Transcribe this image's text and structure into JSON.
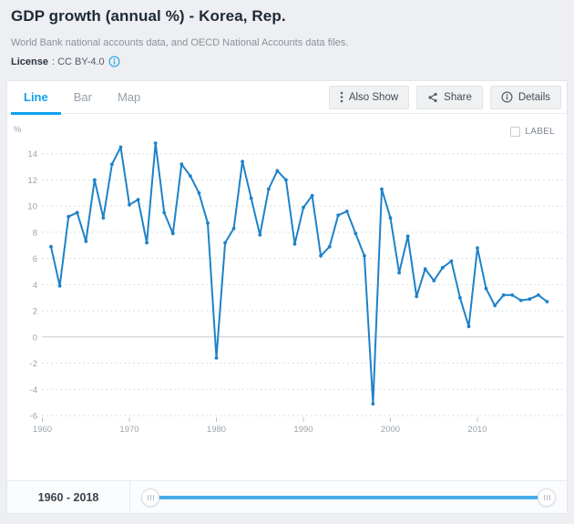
{
  "header": {
    "title": "GDP growth (annual %) - Korea, Rep.",
    "source": "World Bank national accounts data, and OECD National Accounts data files.",
    "license_label": "License",
    "license_value": ": CC BY-4.0"
  },
  "tabs": [
    {
      "label": "Line",
      "active": true
    },
    {
      "label": "Bar",
      "active": false
    },
    {
      "label": "Map",
      "active": false
    }
  ],
  "toolbar": {
    "also_show_label": "Also Show",
    "share_label": "Share",
    "details_label": "Details"
  },
  "chart_controls": {
    "label_checkbox": "LABEL",
    "label_checked": false,
    "unit": "%"
  },
  "footer": {
    "range": "1960 - 2018"
  },
  "colors": {
    "accent_blue": "#10a1ee",
    "line_blue": "#1e82c8",
    "slider_blue": "#47aee9",
    "grid_dashed": "#dadde0",
    "grid_zero": "#c9ccd0",
    "axis_text": "#9aa3ab",
    "page_bg": "#edeff2",
    "card_bg": "#ffffff"
  },
  "chart_data": {
    "type": "line",
    "title": "GDP growth (annual %) - Korea, Rep.",
    "xlabel": "",
    "ylabel": "%",
    "x": [
      1961,
      1962,
      1963,
      1964,
      1965,
      1966,
      1967,
      1968,
      1969,
      1970,
      1971,
      1972,
      1973,
      1974,
      1975,
      1976,
      1977,
      1978,
      1979,
      1980,
      1981,
      1982,
      1983,
      1984,
      1985,
      1986,
      1987,
      1988,
      1989,
      1990,
      1991,
      1992,
      1993,
      1994,
      1995,
      1996,
      1997,
      1998,
      1999,
      2000,
      2001,
      2002,
      2003,
      2004,
      2005,
      2006,
      2007,
      2008,
      2009,
      2010,
      2011,
      2012,
      2013,
      2014,
      2015,
      2016,
      2017,
      2018
    ],
    "values": [
      6.9,
      3.9,
      9.2,
      9.5,
      7.3,
      12.0,
      9.1,
      13.2,
      14.5,
      10.1,
      10.5,
      7.2,
      14.8,
      9.5,
      7.9,
      13.2,
      12.3,
      11.0,
      8.7,
      -1.6,
      7.2,
      8.3,
      13.4,
      10.6,
      7.8,
      11.3,
      12.7,
      12.0,
      7.1,
      9.9,
      10.8,
      6.2,
      6.9,
      9.3,
      9.6,
      7.9,
      6.2,
      -5.1,
      11.3,
      9.1,
      4.9,
      7.7,
      3.1,
      5.2,
      4.3,
      5.3,
      5.8,
      3.0,
      0.8,
      6.8,
      3.7,
      2.4,
      3.2,
      3.2,
      2.8,
      2.9,
      3.2,
      2.7
    ],
    "xlim": [
      1960,
      2019
    ],
    "ylim": [
      -6,
      15.5
    ],
    "yticks": [
      -6,
      -4,
      -2,
      0,
      2,
      4,
      6,
      8,
      10,
      12,
      14
    ],
    "xticks": [
      1960,
      1970,
      1980,
      1990,
      2000,
      2010
    ],
    "grid": "dashed horizontal",
    "legend": "none",
    "marker": "dot"
  }
}
